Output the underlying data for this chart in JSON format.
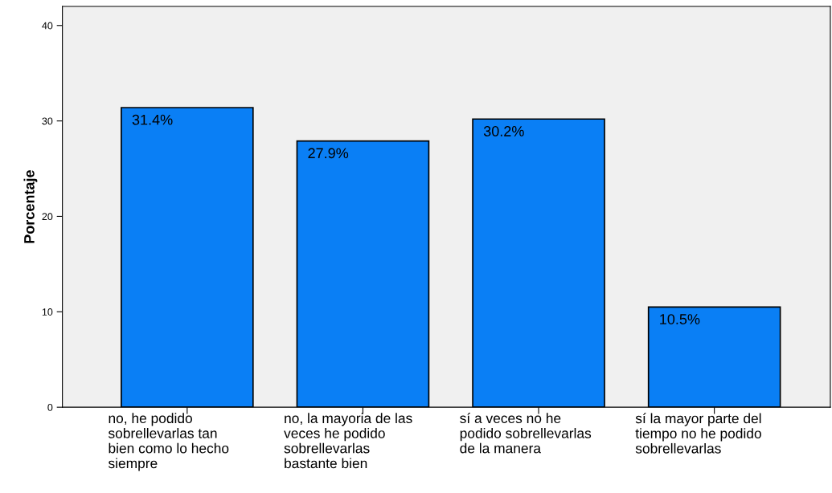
{
  "chart_data": {
    "type": "bar",
    "ylabel": "Porcentaje",
    "categories": [
      "no, he podido\nsobrellevarlas tan\nbien como lo hecho\nsiempre",
      "no, la mayoria de las\nveces he podido\nsobrellevarlas\nbastante bien",
      "sí a veces no he\npodido sobrellevarlas\nde la manera",
      "sí la mayor parte del\ntiempo no he podido\nsobrellevarlas"
    ],
    "values": [
      31.4,
      27.9,
      30.2,
      10.5
    ],
    "value_labels": [
      "31.4%",
      "27.9%",
      "30.2%",
      "10.5%"
    ],
    "color": "#0a7ff5",
    "ylim": [
      0,
      42
    ],
    "yticks": [
      0,
      10,
      20,
      30,
      40
    ],
    "grid": false,
    "legend": false
  }
}
